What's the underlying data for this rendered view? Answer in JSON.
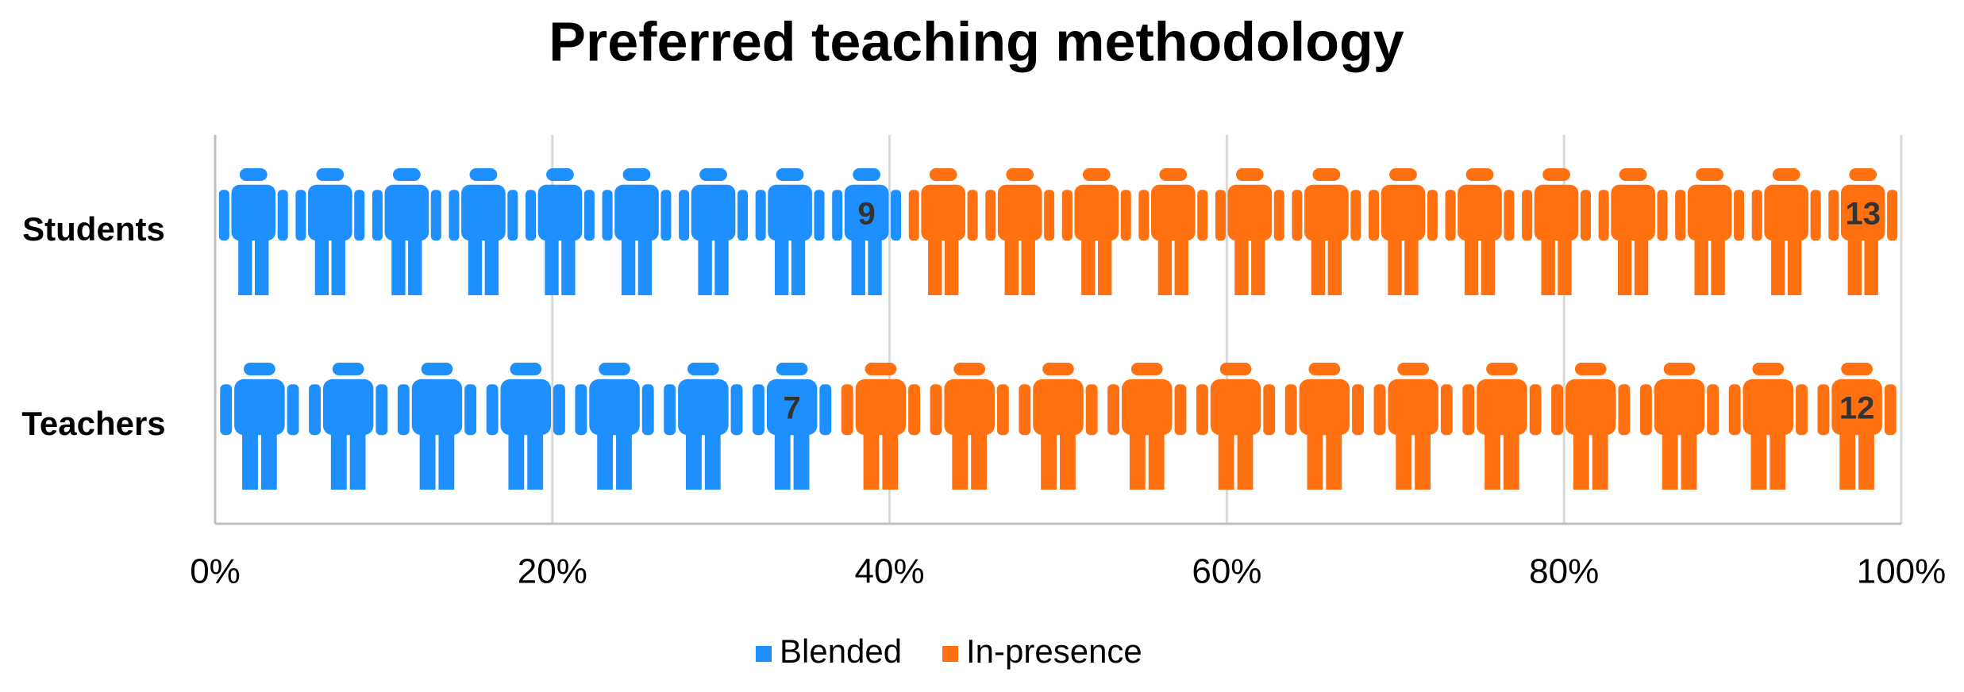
{
  "chart_data": {
    "type": "bar",
    "stacked": "percent",
    "title": "Preferred teaching methodology",
    "categories": [
      "Students",
      "Teachers"
    ],
    "series": [
      {
        "name": "Blended",
        "color": "#1e8fff",
        "values": [
          9,
          7
        ]
      },
      {
        "name": "In-presence",
        "color": "#ff7011",
        "values": [
          13,
          12
        ]
      }
    ],
    "xlim": [
      0,
      100
    ],
    "xticks": [
      {
        "value": 0,
        "label": "0%"
      },
      {
        "value": 20,
        "label": "20%"
      },
      {
        "value": 40,
        "label": "40%"
      },
      {
        "value": 60,
        "label": "60%"
      },
      {
        "value": 80,
        "label": "80%"
      },
      {
        "value": 100,
        "label": "100%"
      }
    ],
    "grid": true,
    "legend": "bottom"
  }
}
